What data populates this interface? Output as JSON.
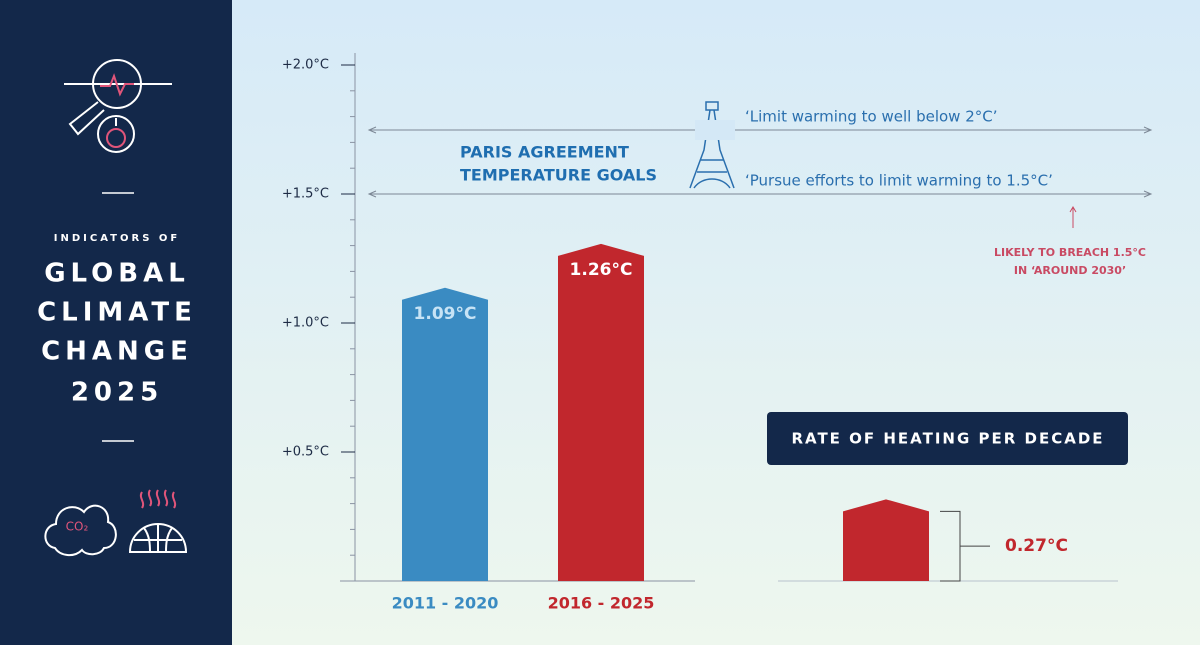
{
  "sidebar": {
    "kicker": "INDICATORS OF",
    "title_lines": [
      "GLOBAL",
      "CLIMATE",
      "CHANGE",
      "2025"
    ],
    "icon_label": "CO₂"
  },
  "chart_data": [
    {
      "type": "bar",
      "categories": [
        "2011 - 2020",
        "2016 - 2025"
      ],
      "values": [
        1.09,
        1.26
      ],
      "value_labels": [
        "1.09°C",
        "1.26°C"
      ],
      "colors": [
        "#3a8bc2",
        "#c1272d"
      ],
      "ylim": [
        0,
        2.0
      ],
      "yticks": [
        {
          "value": 0.5,
          "label": "+0.5°C"
        },
        {
          "value": 1.0,
          "label": "+1.0°C"
        },
        {
          "value": 1.5,
          "label": "+1.5°C"
        },
        {
          "value": 2.0,
          "label": "+2.0°C"
        }
      ],
      "annotations": {
        "goal_title": [
          "PARIS AGREEMENT",
          "TEMPERATURE GOALS"
        ],
        "goal_2": "‘Limit warming to well below 2°C’",
        "goal_15": "‘Pursue efforts to limit warming to 1.5°C’",
        "breach": [
          "LIKELY TO BREACH 1.5°C",
          "IN ‘AROUND 2030’"
        ]
      }
    },
    {
      "type": "bar",
      "title": "RATE OF HEATING PER DECADE",
      "categories": [
        null
      ],
      "values": [
        0.27
      ],
      "value_labels": [
        "0.27°C"
      ],
      "color": "#c1272d"
    }
  ]
}
